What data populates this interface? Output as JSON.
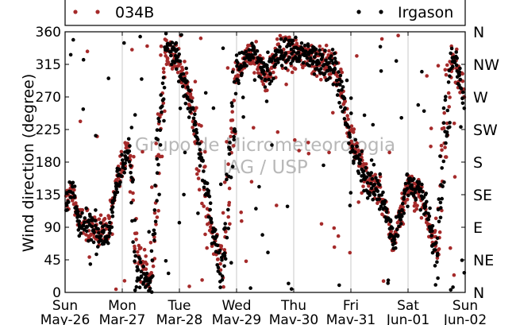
{
  "chart_data": {
    "type": "scatter",
    "title": "",
    "watermark": [
      "Grupo de Micrometeorologia",
      "IAG / USP"
    ],
    "xlabel": "",
    "ylabel": "Wind direction (degree)",
    "ylim": [
      0,
      360
    ],
    "xlim": [
      "2013-05-26",
      "2013-06-02"
    ],
    "grid": "vertical",
    "legend_position": "top",
    "y_ticks": [
      0,
      45,
      90,
      135,
      180,
      225,
      270,
      315,
      360
    ],
    "x_ticks": [
      {
        "date": "2013-05-26",
        "day": "Sun",
        "date_label": "May-26"
      },
      {
        "date": "2013-05-27",
        "day": "Mon",
        "date_label": "Mar-27"
      },
      {
        "date": "2013-05-28",
        "day": "Tue",
        "date_label": "Mar-28"
      },
      {
        "date": "2013-05-29",
        "day": "Wed",
        "date_label": "Mav-29"
      },
      {
        "date": "2013-05-30",
        "day": "Thu",
        "date_label": "Mav-30"
      },
      {
        "date": "2013-05-31",
        "day": "Fri",
        "date_label": "Mav-31"
      },
      {
        "date": "2013-06-01",
        "day": "Sat",
        "date_label": "Jun-01"
      },
      {
        "date": "2013-06-02",
        "day": "Sun",
        "date_label": "Jun-02"
      }
    ],
    "right_axis_labels": [
      {
        "value": 0,
        "label": "N"
      },
      {
        "value": 45,
        "label": "NE"
      },
      {
        "value": 90,
        "label": "E"
      },
      {
        "value": 135,
        "label": "SE"
      },
      {
        "value": 180,
        "label": "S"
      },
      {
        "value": 225,
        "label": "SW"
      },
      {
        "value": 270,
        "label": "W"
      },
      {
        "value": 315,
        "label": "NW"
      },
      {
        "value": 360,
        "label": "N"
      }
    ],
    "series": [
      {
        "name": "034B",
        "color": "#a52a2a",
        "description_trend": [
          [
            "2013-05-26T00:00",
            125
          ],
          [
            "2013-05-26T03:00",
            140
          ],
          [
            "2013-05-26T06:00",
            95
          ],
          [
            "2013-05-26T12:00",
            90
          ],
          [
            "2013-05-26T18:00",
            80
          ],
          [
            "2013-05-26T21:00",
            150
          ],
          [
            "2013-05-27T00:00",
            175
          ],
          [
            "2013-05-27T03:00",
            200
          ],
          [
            "2013-05-27T06:00",
            60
          ],
          [
            "2013-05-27T12:00",
            20
          ],
          [
            "2013-05-27T18:00",
            330
          ],
          [
            "2013-05-28T00:00",
            320
          ],
          [
            "2013-05-28T06:00",
            250
          ],
          [
            "2013-05-28T12:00",
            100
          ],
          [
            "2013-05-28T18:00",
            40
          ],
          [
            "2013-05-29T00:00",
            300
          ],
          [
            "2013-05-29T06:00",
            330
          ],
          [
            "2013-05-29T12:00",
            300
          ],
          [
            "2013-05-29T18:00",
            330
          ],
          [
            "2013-05-30T00:00",
            330
          ],
          [
            "2013-05-30T12:00",
            320
          ],
          [
            "2013-05-30T18:00",
            310
          ],
          [
            "2013-05-31T00:00",
            220
          ],
          [
            "2013-05-31T06:00",
            160
          ],
          [
            "2013-05-31T12:00",
            140
          ],
          [
            "2013-05-31T18:00",
            70
          ],
          [
            "2013-06-01T00:00",
            150
          ],
          [
            "2013-06-01T06:00",
            130
          ],
          [
            "2013-06-01T12:00",
            60
          ],
          [
            "2013-06-01T18:00",
            330
          ],
          [
            "2013-06-02T00:00",
            280
          ]
        ]
      },
      {
        "name": "Irgason",
        "color": "#000000",
        "description_trend": [
          [
            "2013-05-26T00:00",
            120
          ],
          [
            "2013-05-26T03:00",
            145
          ],
          [
            "2013-05-26T06:00",
            95
          ],
          [
            "2013-05-26T12:00",
            90
          ],
          [
            "2013-05-26T18:00",
            75
          ],
          [
            "2013-05-26T21:00",
            150
          ],
          [
            "2013-05-27T00:00",
            175
          ],
          [
            "2013-05-27T03:00",
            195
          ],
          [
            "2013-05-27T06:00",
            30
          ],
          [
            "2013-05-27T12:00",
            10
          ],
          [
            "2013-05-27T18:00",
            340
          ],
          [
            "2013-05-28T00:00",
            320
          ],
          [
            "2013-05-28T06:00",
            240
          ],
          [
            "2013-05-28T12:00",
            130
          ],
          [
            "2013-05-28T18:00",
            20
          ],
          [
            "2013-05-29T00:00",
            300
          ],
          [
            "2013-05-29T06:00",
            335
          ],
          [
            "2013-05-29T12:00",
            300
          ],
          [
            "2013-05-29T18:00",
            330
          ],
          [
            "2013-05-30T00:00",
            335
          ],
          [
            "2013-05-30T12:00",
            320
          ],
          [
            "2013-05-30T18:00",
            310
          ],
          [
            "2013-05-31T00:00",
            200
          ],
          [
            "2013-05-31T06:00",
            160
          ],
          [
            "2013-05-31T12:00",
            140
          ],
          [
            "2013-05-31T18:00",
            70
          ],
          [
            "2013-06-01T00:00",
            150
          ],
          [
            "2013-06-01T06:00",
            140
          ],
          [
            "2013-06-01T12:00",
            50
          ],
          [
            "2013-06-01T18:00",
            335
          ],
          [
            "2013-06-02T00:00",
            270
          ]
        ]
      }
    ]
  }
}
